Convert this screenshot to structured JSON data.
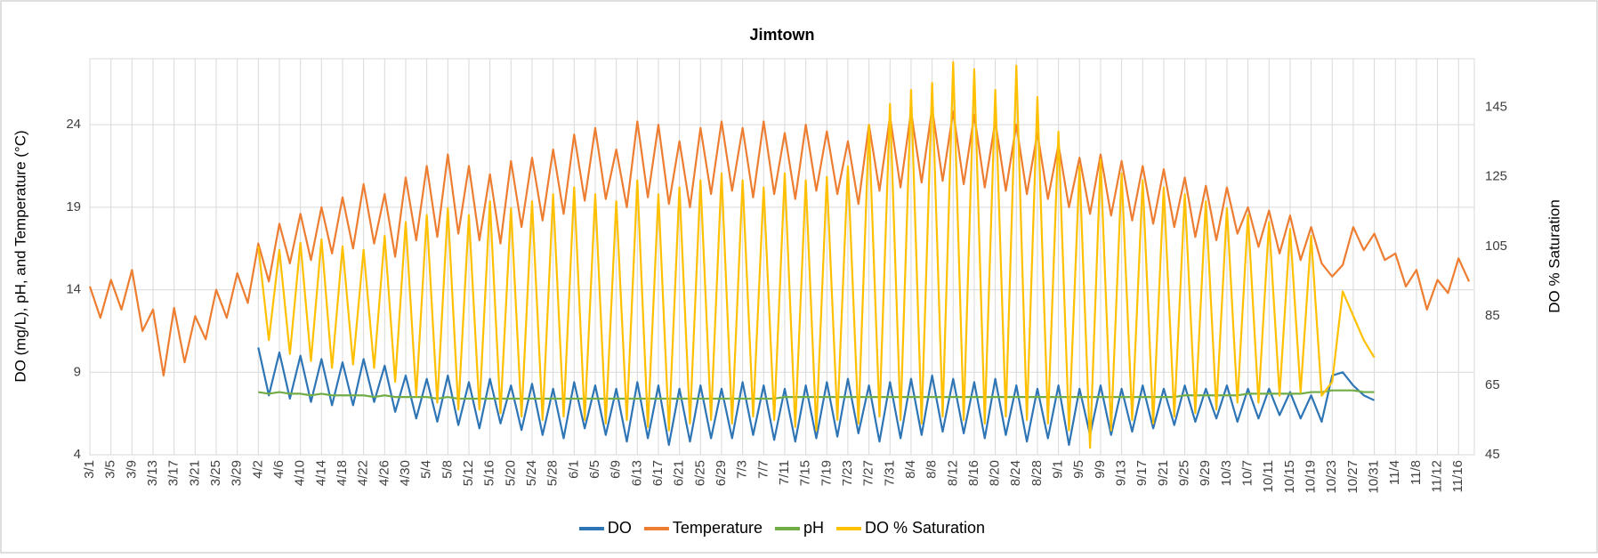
{
  "chart_data": {
    "type": "line",
    "title": "Jimtown",
    "ylabel": "DO (mg/L), pH, and Temperature (°C)",
    "y2label": "DO % Saturation",
    "grid": true,
    "legend": "bottom",
    "xlim": [
      0,
      263
    ],
    "ylim": [
      4,
      28
    ],
    "yticks": [
      4,
      9,
      14,
      19,
      24
    ],
    "y2lim": [
      45,
      159
    ],
    "y2ticks": [
      45,
      65,
      85,
      105,
      125,
      145
    ],
    "xticks": [
      {
        "value": 0,
        "label": "3/1"
      },
      {
        "value": 4,
        "label": "3/5"
      },
      {
        "value": 8,
        "label": "3/9"
      },
      {
        "value": 12,
        "label": "3/13"
      },
      {
        "value": 16,
        "label": "3/17"
      },
      {
        "value": 20,
        "label": "3/21"
      },
      {
        "value": 24,
        "label": "3/25"
      },
      {
        "value": 28,
        "label": "3/29"
      },
      {
        "value": 32,
        "label": "4/2"
      },
      {
        "value": 36,
        "label": "4/6"
      },
      {
        "value": 40,
        "label": "4/10"
      },
      {
        "value": 44,
        "label": "4/14"
      },
      {
        "value": 48,
        "label": "4/18"
      },
      {
        "value": 52,
        "label": "4/22"
      },
      {
        "value": 56,
        "label": "4/26"
      },
      {
        "value": 60,
        "label": "4/30"
      },
      {
        "value": 64,
        "label": "5/4"
      },
      {
        "value": 68,
        "label": "5/8"
      },
      {
        "value": 72,
        "label": "5/12"
      },
      {
        "value": 76,
        "label": "5/16"
      },
      {
        "value": 80,
        "label": "5/20"
      },
      {
        "value": 84,
        "label": "5/24"
      },
      {
        "value": 88,
        "label": "5/28"
      },
      {
        "value": 92,
        "label": "6/1"
      },
      {
        "value": 96,
        "label": "6/5"
      },
      {
        "value": 100,
        "label": "6/9"
      },
      {
        "value": 104,
        "label": "6/13"
      },
      {
        "value": 108,
        "label": "6/17"
      },
      {
        "value": 112,
        "label": "6/21"
      },
      {
        "value": 116,
        "label": "6/25"
      },
      {
        "value": 120,
        "label": "6/29"
      },
      {
        "value": 124,
        "label": "7/3"
      },
      {
        "value": 128,
        "label": "7/7"
      },
      {
        "value": 132,
        "label": "7/11"
      },
      {
        "value": 136,
        "label": "7/15"
      },
      {
        "value": 140,
        "label": "7/19"
      },
      {
        "value": 144,
        "label": "7/23"
      },
      {
        "value": 148,
        "label": "7/27"
      },
      {
        "value": 152,
        "label": "7/31"
      },
      {
        "value": 156,
        "label": "8/4"
      },
      {
        "value": 160,
        "label": "8/8"
      },
      {
        "value": 164,
        "label": "8/12"
      },
      {
        "value": 168,
        "label": "8/16"
      },
      {
        "value": 172,
        "label": "8/20"
      },
      {
        "value": 176,
        "label": "8/24"
      },
      {
        "value": 180,
        "label": "8/28"
      },
      {
        "value": 184,
        "label": "9/1"
      },
      {
        "value": 188,
        "label": "9/5"
      },
      {
        "value": 192,
        "label": "9/9"
      },
      {
        "value": 196,
        "label": "9/13"
      },
      {
        "value": 200,
        "label": "9/17"
      },
      {
        "value": 204,
        "label": "9/21"
      },
      {
        "value": 208,
        "label": "9/25"
      },
      {
        "value": 212,
        "label": "9/29"
      },
      {
        "value": 216,
        "label": "10/3"
      },
      {
        "value": 220,
        "label": "10/7"
      },
      {
        "value": 224,
        "label": "10/11"
      },
      {
        "value": 228,
        "label": "10/15"
      },
      {
        "value": 232,
        "label": "10/19"
      },
      {
        "value": 236,
        "label": "10/23"
      },
      {
        "value": 240,
        "label": "10/27"
      },
      {
        "value": 244,
        "label": "10/31"
      },
      {
        "value": 248,
        "label": "11/4"
      },
      {
        "value": 252,
        "label": "11/8"
      },
      {
        "value": 256,
        "label": "11/12"
      },
      {
        "value": 260,
        "label": "11/16"
      }
    ],
    "x": [
      0,
      2,
      4,
      6,
      8,
      10,
      12,
      14,
      16,
      18,
      20,
      22,
      24,
      26,
      28,
      30,
      32,
      34,
      36,
      38,
      40,
      42,
      44,
      46,
      48,
      50,
      52,
      54,
      56,
      58,
      60,
      62,
      64,
      66,
      68,
      70,
      72,
      74,
      76,
      78,
      80,
      82,
      84,
      86,
      88,
      90,
      92,
      94,
      96,
      98,
      100,
      102,
      104,
      106,
      108,
      110,
      112,
      114,
      116,
      118,
      120,
      122,
      124,
      126,
      128,
      130,
      132,
      134,
      136,
      138,
      140,
      142,
      144,
      146,
      148,
      150,
      152,
      154,
      156,
      158,
      160,
      162,
      164,
      166,
      168,
      170,
      172,
      174,
      176,
      178,
      180,
      182,
      184,
      186,
      188,
      190,
      192,
      194,
      196,
      198,
      200,
      202,
      204,
      206,
      208,
      210,
      212,
      214,
      216,
      218,
      220,
      222,
      224,
      226,
      228,
      230,
      232,
      234,
      236,
      238,
      240,
      242,
      244,
      246,
      248,
      250,
      252,
      254,
      256,
      258,
      260,
      262
    ],
    "series": [
      {
        "name": "DO",
        "color": "#2e75b6",
        "axis": "y",
        "values": [
          null,
          null,
          null,
          null,
          null,
          null,
          null,
          null,
          null,
          null,
          null,
          null,
          null,
          null,
          null,
          null,
          10.5,
          7.6,
          10.2,
          7.4,
          10.0,
          7.2,
          9.8,
          7.0,
          9.6,
          7.0,
          9.8,
          7.2,
          9.4,
          6.6,
          8.8,
          6.2,
          8.6,
          6.0,
          8.8,
          5.8,
          8.4,
          5.6,
          8.6,
          5.9,
          8.2,
          5.5,
          8.3,
          5.2,
          8.0,
          5.0,
          8.4,
          5.6,
          8.2,
          5.2,
          8.0,
          4.8,
          8.4,
          5.0,
          8.2,
          4.6,
          8.0,
          4.8,
          8.2,
          5.0,
          8.0,
          5.0,
          8.4,
          5.2,
          8.2,
          4.9,
          8.0,
          4.8,
          8.2,
          5.0,
          8.4,
          5.1,
          8.6,
          5.3,
          8.2,
          4.8,
          8.4,
          5.0,
          8.6,
          5.2,
          8.8,
          5.4,
          8.6,
          5.3,
          8.4,
          5.0,
          8.6,
          5.2,
          8.2,
          4.8,
          8.0,
          5.0,
          8.2,
          4.6,
          8.0,
          5.2,
          8.2,
          5.2,
          8.0,
          5.4,
          8.2,
          5.6,
          8.0,
          5.8,
          8.2,
          6.0,
          8.0,
          6.2,
          8.2,
          6.0,
          8.0,
          6.2,
          8.0,
          6.4,
          7.8,
          6.2,
          7.6,
          6.0,
          8.8,
          9.0,
          8.2,
          7.6,
          7.3,
          null,
          null,
          null,
          null,
          null,
          null,
          null,
          null,
          null
        ]
      },
      {
        "name": "Temperature",
        "color": "#ed7d31",
        "axis": "y",
        "values": [
          14.2,
          12.3,
          14.6,
          12.8,
          15.2,
          11.5,
          12.8,
          8.8,
          12.9,
          9.6,
          12.4,
          11.0,
          14.0,
          12.3,
          15.0,
          13.2,
          16.8,
          14.5,
          18.0,
          15.6,
          18.6,
          15.8,
          19.0,
          16.2,
          19.6,
          16.5,
          20.4,
          16.8,
          19.8,
          16.0,
          20.8,
          17.0,
          21.5,
          17.2,
          22.2,
          17.4,
          21.5,
          17.0,
          21.0,
          16.8,
          21.8,
          17.8,
          22.0,
          18.2,
          22.5,
          18.6,
          23.4,
          19.4,
          23.8,
          19.5,
          22.5,
          19.0,
          24.2,
          19.6,
          24.0,
          19.2,
          23.0,
          19.0,
          23.8,
          19.8,
          24.2,
          20.0,
          23.8,
          19.6,
          24.2,
          19.8,
          23.5,
          19.5,
          24.0,
          20.0,
          23.6,
          19.8,
          23.0,
          19.2,
          24.0,
          20.0,
          24.5,
          20.2,
          24.8,
          20.5,
          25.0,
          20.6,
          24.8,
          20.4,
          24.6,
          20.2,
          24.2,
          20.0,
          24.0,
          19.8,
          23.5,
          19.5,
          22.8,
          19.0,
          22.0,
          18.6,
          22.2,
          18.5,
          21.8,
          18.2,
          21.5,
          18.0,
          21.3,
          17.8,
          20.8,
          17.2,
          20.3,
          17.0,
          20.2,
          17.4,
          19.0,
          16.6,
          18.8,
          16.2,
          18.5,
          15.8,
          17.8,
          15.6,
          14.8,
          15.5,
          17.8,
          16.4,
          17.4,
          15.8,
          16.2,
          14.2,
          15.2,
          12.8,
          14.6,
          13.8,
          15.9,
          14.5
        ]
      },
      {
        "name": "pH",
        "color": "#70ad47",
        "axis": "y",
        "values": [
          null,
          null,
          null,
          null,
          null,
          null,
          null,
          null,
          null,
          null,
          null,
          null,
          null,
          null,
          null,
          null,
          7.8,
          7.7,
          7.8,
          7.7,
          7.7,
          7.6,
          7.7,
          7.6,
          7.6,
          7.6,
          7.6,
          7.5,
          7.6,
          7.5,
          7.5,
          7.5,
          7.5,
          7.4,
          7.5,
          7.4,
          7.4,
          7.4,
          7.4,
          7.4,
          7.4,
          7.4,
          7.4,
          7.4,
          7.4,
          7.4,
          7.4,
          7.4,
          7.4,
          7.4,
          7.4,
          7.4,
          7.4,
          7.4,
          7.4,
          7.4,
          7.4,
          7.4,
          7.4,
          7.4,
          7.4,
          7.4,
          7.4,
          7.4,
          7.4,
          7.4,
          7.5,
          7.5,
          7.5,
          7.5,
          7.5,
          7.5,
          7.5,
          7.5,
          7.5,
          7.5,
          7.5,
          7.5,
          7.5,
          7.5,
          7.5,
          7.5,
          7.5,
          7.5,
          7.5,
          7.5,
          7.5,
          7.5,
          7.5,
          7.5,
          7.5,
          7.5,
          7.5,
          7.5,
          7.5,
          7.5,
          7.5,
          7.5,
          7.5,
          7.5,
          7.5,
          7.5,
          7.5,
          7.5,
          7.6,
          7.6,
          7.6,
          7.6,
          7.6,
          7.6,
          7.7,
          7.7,
          7.7,
          7.7,
          7.7,
          7.7,
          7.8,
          7.8,
          7.9,
          7.9,
          7.9,
          7.8,
          7.8,
          null,
          null,
          null,
          null,
          null,
          null,
          null,
          null,
          null
        ]
      },
      {
        "name": "DO % Saturation",
        "color": "#ffc000",
        "axis": "y2",
        "values": [
          null,
          null,
          null,
          null,
          null,
          null,
          null,
          null,
          null,
          null,
          null,
          null,
          null,
          null,
          null,
          null,
          105,
          78,
          104,
          74,
          106,
          72,
          107,
          70,
          105,
          71,
          104,
          70,
          108,
          66,
          112,
          62,
          114,
          60,
          116,
          58,
          114,
          58,
          118,
          57,
          116,
          56,
          118,
          55,
          120,
          56,
          122,
          55,
          120,
          54,
          118,
          55,
          124,
          53,
          120,
          52,
          122,
          54,
          124,
          55,
          126,
          54,
          124,
          56,
          122,
          55,
          126,
          53,
          124,
          52,
          125,
          55,
          128,
          54,
          140,
          56,
          146,
          55,
          150,
          54,
          152,
          56,
          158,
          55,
          156,
          54,
          150,
          56,
          157,
          55,
          148,
          54,
          138,
          52,
          128,
          47,
          130,
          52,
          126,
          55,
          124,
          54,
          122,
          56,
          120,
          57,
          118,
          58,
          116,
          60,
          114,
          60,
          112,
          62,
          110,
          63,
          108,
          62,
          66,
          92,
          85,
          78,
          73,
          null,
          null,
          null,
          null,
          null,
          null,
          null,
          null,
          null
        ]
      }
    ]
  }
}
